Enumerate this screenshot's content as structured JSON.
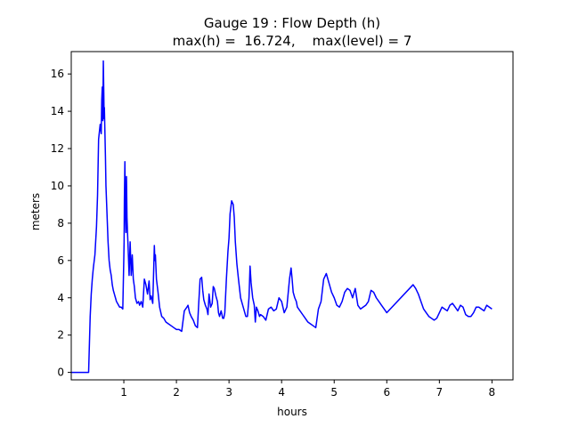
{
  "chart_data": {
    "type": "line",
    "title": "Gauge 19 : Flow Depth (h)",
    "subtitle": "max(h) =  16.724,    max(level) = 7",
    "xlabel": "hours",
    "ylabel": "meters",
    "xlim": [
      0.0,
      8.4
    ],
    "ylim": [
      -0.4,
      17.2
    ],
    "xticks": [
      1,
      2,
      3,
      4,
      5,
      6,
      7,
      8
    ],
    "yticks": [
      0,
      2,
      4,
      6,
      8,
      10,
      12,
      14,
      16
    ],
    "grid": false,
    "series": [
      {
        "color": "#0000ff",
        "x": [
          0.0,
          0.33,
          0.34,
          0.36,
          0.38,
          0.4,
          0.42,
          0.45,
          0.48,
          0.5,
          0.52,
          0.55,
          0.57,
          0.58,
          0.59,
          0.6,
          0.61,
          0.62,
          0.625,
          0.63,
          0.64,
          0.65,
          0.66,
          0.68,
          0.7,
          0.72,
          0.74,
          0.76,
          0.78,
          0.8,
          0.82,
          0.84,
          0.86,
          0.88,
          0.9,
          0.92,
          0.95,
          0.98,
          1.0,
          1.005,
          1.01,
          1.02,
          1.03,
          1.04,
          1.05,
          1.06,
          1.07,
          1.08,
          1.1,
          1.12,
          1.14,
          1.16,
          1.18,
          1.2,
          1.22,
          1.25,
          1.28,
          1.3,
          1.33,
          1.36,
          1.39,
          1.42,
          1.45,
          1.48,
          1.5,
          1.52,
          1.55,
          1.58,
          1.59,
          1.6,
          1.62,
          1.65,
          1.68,
          1.72,
          1.76,
          1.8,
          1.85,
          1.9,
          1.95,
          2.0,
          2.05,
          2.1,
          2.15,
          2.2,
          2.22,
          2.25,
          2.28,
          2.32,
          2.36,
          2.4,
          2.42,
          2.45,
          2.48,
          2.5,
          2.52,
          2.55,
          2.58,
          2.6,
          2.62,
          2.65,
          2.68,
          2.7,
          2.72,
          2.75,
          2.78,
          2.8,
          2.82,
          2.85,
          2.88,
          2.9,
          2.92,
          2.95,
          2.98,
          3.0,
          3.02,
          3.05,
          3.08,
          3.1,
          3.12,
          3.15,
          3.18,
          3.2,
          3.22,
          3.25,
          3.28,
          3.3,
          3.32,
          3.35,
          3.38,
          3.4,
          3.42,
          3.45,
          3.48,
          3.5,
          3.52,
          3.55,
          3.58,
          3.6,
          3.65,
          3.7,
          3.75,
          3.8,
          3.85,
          3.9,
          3.95,
          4.0,
          4.05,
          4.1,
          4.15,
          4.18,
          4.2,
          4.22,
          4.25,
          4.28,
          4.3,
          4.35,
          4.4,
          4.45,
          4.5,
          4.55,
          4.6,
          4.65,
          4.7,
          4.75,
          4.8,
          4.85,
          4.9,
          4.95,
          5.0,
          5.05,
          5.1,
          5.15,
          5.2,
          5.25,
          5.3,
          5.35,
          5.4,
          5.45,
          5.5,
          5.55,
          5.6,
          5.65,
          5.7,
          5.75,
          5.8,
          5.85,
          5.9,
          5.95,
          6.0,
          6.5,
          6.55,
          6.6,
          6.65,
          6.7,
          6.75,
          6.8,
          6.85,
          6.9,
          6.95,
          7.0,
          7.05,
          7.1,
          7.15,
          7.2,
          7.25,
          7.3,
          7.35,
          7.4,
          7.45,
          7.5,
          7.55,
          7.6,
          7.65,
          7.7,
          7.75,
          7.8,
          7.85,
          7.9,
          7.95,
          8.0
        ],
        "y": [
          0.0,
          0.0,
          1.0,
          3.0,
          4.2,
          5.0,
          5.6,
          6.3,
          7.8,
          9.5,
          12.5,
          13.3,
          12.8,
          14.6,
          15.3,
          13.5,
          16.7,
          14.8,
          13.6,
          14.2,
          12.9,
          11.6,
          10.0,
          8.5,
          7.0,
          6.0,
          5.5,
          5.2,
          4.7,
          4.4,
          4.2,
          4.0,
          3.8,
          3.7,
          3.6,
          3.5,
          3.5,
          3.4,
          6.2,
          7.0,
          9.2,
          11.3,
          8.5,
          7.5,
          10.5,
          8.3,
          7.5,
          6.8,
          5.2,
          7.0,
          5.2,
          6.3,
          5.0,
          4.6,
          4.0,
          3.7,
          3.8,
          3.6,
          3.8,
          3.5,
          5.0,
          4.7,
          4.2,
          4.9,
          3.9,
          4.1,
          3.7,
          6.8,
          6.0,
          6.3,
          5.0,
          4.3,
          3.5,
          3.0,
          2.9,
          2.7,
          2.6,
          2.5,
          2.4,
          2.3,
          2.3,
          2.2,
          3.3,
          3.5,
          3.6,
          3.2,
          3.0,
          2.8,
          2.5,
          2.4,
          3.5,
          5.0,
          5.1,
          4.4,
          3.9,
          3.6,
          3.4,
          3.1,
          4.2,
          3.5,
          3.7,
          4.6,
          4.5,
          4.1,
          3.8,
          3.2,
          3.0,
          3.3,
          2.9,
          2.9,
          3.2,
          5.0,
          6.5,
          7.2,
          8.5,
          9.2,
          9.0,
          8.3,
          7.0,
          5.8,
          5.0,
          4.5,
          4.0,
          3.7,
          3.4,
          3.2,
          3.0,
          3.0,
          4.0,
          5.7,
          4.8,
          4.0,
          3.6,
          2.7,
          3.5,
          3.3,
          3.0,
          3.1,
          3.0,
          2.8,
          3.4,
          3.5,
          3.3,
          3.4,
          4.0,
          3.8,
          3.2,
          3.5,
          5.0,
          5.6,
          5.0,
          4.3,
          4.0,
          3.8,
          3.5,
          3.3,
          3.1,
          2.9,
          2.7,
          2.6,
          2.5,
          2.4,
          3.4,
          3.8,
          5.0,
          5.3,
          4.8,
          4.3,
          4.0,
          3.6,
          3.5,
          3.8,
          4.3,
          4.5,
          4.4,
          4.0,
          4.5,
          3.6,
          3.4,
          3.5,
          3.6,
          3.8,
          4.4,
          4.3,
          4.0,
          3.8,
          3.6,
          3.4,
          3.2,
          4.7,
          4.5,
          4.2,
          3.8,
          3.4,
          3.2,
          3.0,
          2.9,
          2.8,
          2.9,
          3.2,
          3.5,
          3.4,
          3.3,
          3.6,
          3.7,
          3.5,
          3.3,
          3.6,
          3.5,
          3.1,
          3.0,
          3.0,
          3.2,
          3.5,
          3.5,
          3.4,
          3.3,
          3.6,
          3.5,
          3.4
        ]
      }
    ]
  }
}
